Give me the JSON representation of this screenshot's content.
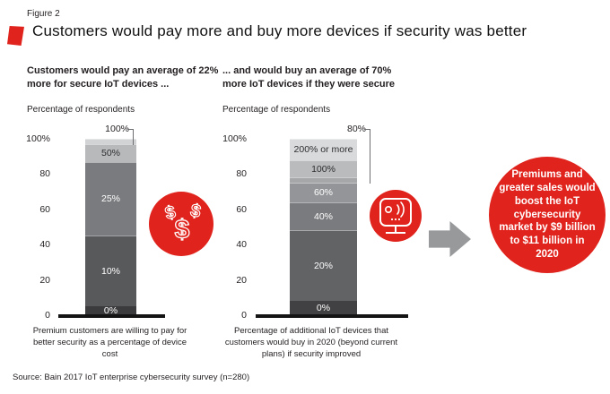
{
  "figure_label": "Figure 2",
  "title": "Customers would pay more and buy more devices if security was better",
  "source_line": "Source: Bain 2017 IoT enterprise cybersecurity survey (n=280)",
  "summary_circle": {
    "text": "Premiums and greater sales would boost the IoT cybersecurity market by $9 billion to $11 billion in 2020"
  },
  "icons": {
    "title_marker": "red-parallelogram-bullet",
    "dollar_icon": "three-dollar-signs",
    "iot_device_icon": "connected-device-with-signal-waves",
    "arrow_right_icon": "solid-block-arrow-right"
  },
  "colors": {
    "accent_red": "#e0231c",
    "arrow_gray": "#97999b",
    "axis_black": "#141414",
    "text_dark": "#231f20"
  },
  "chart_data": [
    {
      "type": "bar",
      "subtype": "single-stacked-column",
      "subtitle": "Customers would pay an average of 22% more for secure IoT devices ...",
      "axis_label": "Percentage of respondents",
      "ylim": [
        0,
        100
      ],
      "grid": false,
      "y_ticks": [
        {
          "label": "100%",
          "value": 100
        },
        {
          "label": "80",
          "value": 80
        },
        {
          "label": "60",
          "value": 60
        },
        {
          "label": "40",
          "value": 40
        },
        {
          "label": "20",
          "value": 20
        },
        {
          "label": "0",
          "value": 0
        }
      ],
      "callout": {
        "label": "100%"
      },
      "segments_bottom_up": [
        {
          "label": "0%",
          "value": 5,
          "color": "#3b3b3d",
          "text_color": "#ffffff"
        },
        {
          "label": "10%",
          "value": 40,
          "color": "#58595b",
          "text_color": "#ffffff"
        },
        {
          "label": "25%",
          "value": 42,
          "color": "#7a7b7e",
          "text_color": "#ffffff"
        },
        {
          "label": "50%",
          "value": 10,
          "color": "#b7b9ba",
          "text_color": "#2e2e30"
        },
        {
          "label": "100%",
          "value": 3,
          "color": "#d2d3d4",
          "label_via_callout": true
        }
      ],
      "footnote": "Premium customers are willing to pay for better security as a percentage of device cost"
    },
    {
      "type": "bar",
      "subtype": "single-stacked-column",
      "subtitle": "... and would buy an average of 70% more IoT devices if they were secure",
      "axis_label": "Percentage of respondents",
      "ylim": [
        0,
        100
      ],
      "grid": false,
      "y_ticks": [
        {
          "label": "100%",
          "value": 100
        },
        {
          "label": "80",
          "value": 80
        },
        {
          "label": "60",
          "value": 60
        },
        {
          "label": "40",
          "value": 40
        },
        {
          "label": "20",
          "value": 20
        },
        {
          "label": "0",
          "value": 0
        }
      ],
      "callout": {
        "label": "80%"
      },
      "segments_bottom_up": [
        {
          "label": "0%",
          "value": 8,
          "color": "#414042",
          "text_color": "#ffffff"
        },
        {
          "label": "20%",
          "value": 40,
          "color": "#626365",
          "text_color": "#ffffff"
        },
        {
          "label": "40%",
          "value": 16,
          "color": "#7a7b7e",
          "text_color": "#ffffff"
        },
        {
          "label": "60%",
          "value": 11,
          "color": "#939598",
          "text_color": "#ffffff"
        },
        {
          "label": "80%",
          "value": 3,
          "color": "#a5a7a9",
          "label_via_callout": true
        },
        {
          "label": "100%",
          "value": 10,
          "color": "#b9bbbd",
          "text_color": "#2e2e30"
        },
        {
          "label": "200% or more",
          "value": 12,
          "color": "#d9dadb",
          "text_color": "#2e2e30"
        }
      ],
      "footnote": "Percentage of additional IoT devices that customers would buy in 2020 (beyond current plans) if security improved"
    }
  ]
}
